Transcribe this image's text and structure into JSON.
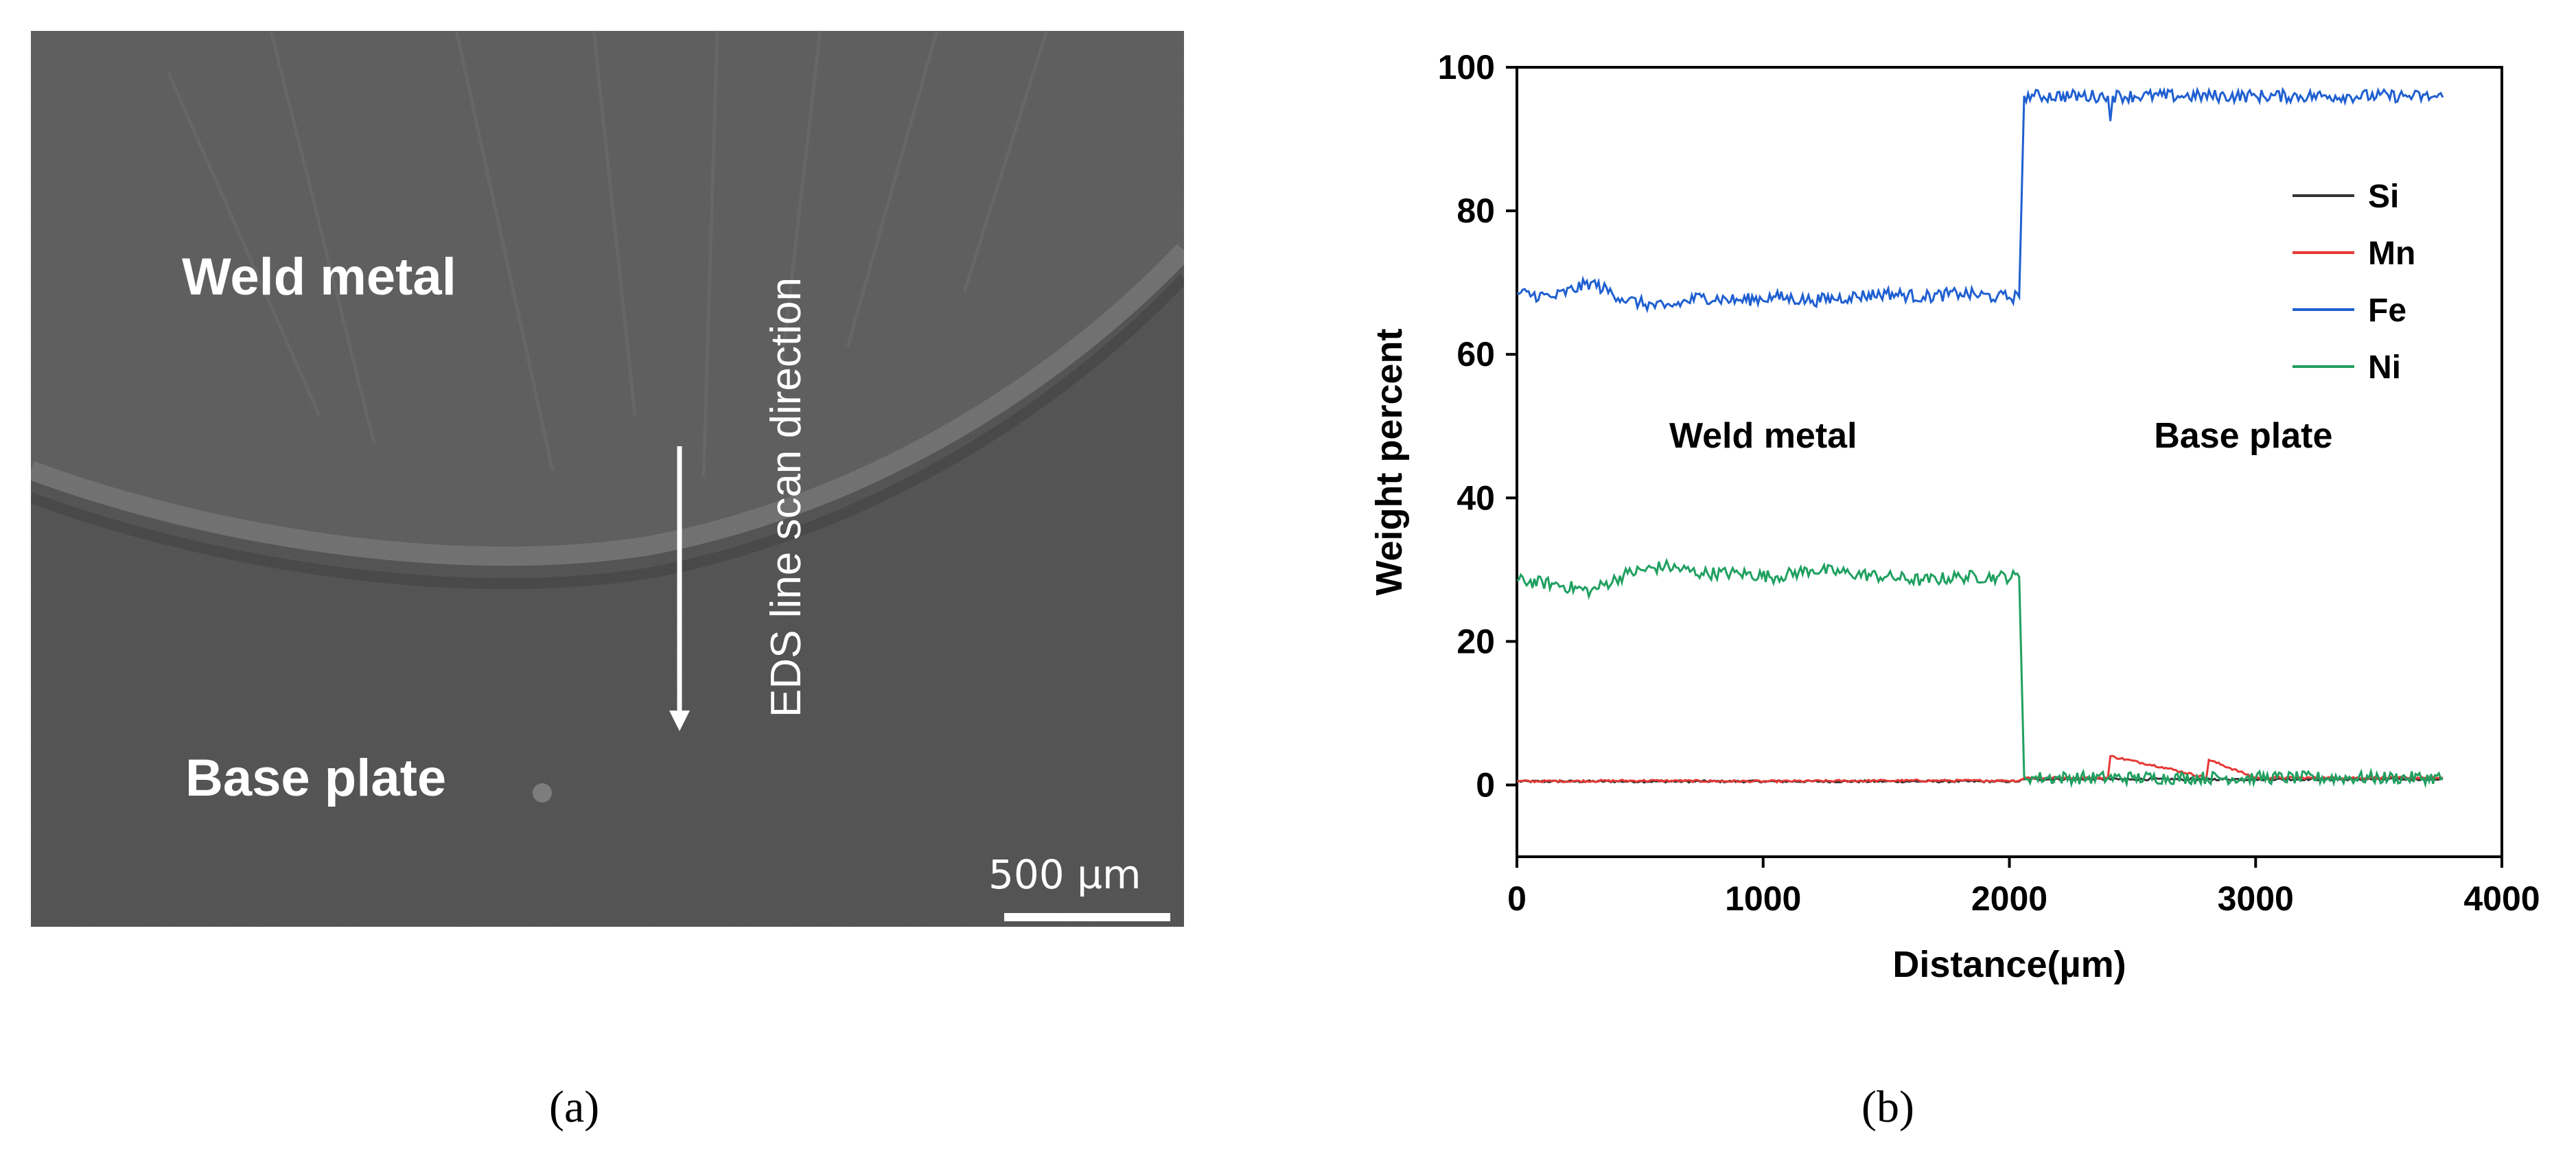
{
  "panel_a": {
    "caption": "(a)",
    "weld_label": "Weld metal",
    "base_label": "Base plate",
    "scan_label": "EDS line scan direction",
    "scalebar_label": "500 µm"
  },
  "panel_b": {
    "caption": "(b)"
  },
  "chart_data": {
    "type": "line",
    "xlabel": "Distance(µm)",
    "ylabel": "Weight percent",
    "xlim": [
      0,
      4000
    ],
    "ylim": [
      -10,
      100
    ],
    "xticks": [
      0,
      1000,
      2000,
      3000,
      4000
    ],
    "yticks": [
      0,
      20,
      40,
      60,
      80,
      100
    ],
    "legend_position": "right",
    "annotations": [
      {
        "text": "Weld metal",
        "x": 1000,
        "y": 47
      },
      {
        "text": "Base plate",
        "x": 2950,
        "y": 47
      }
    ],
    "series": [
      {
        "name": "Si",
        "color": "#333333",
        "x": [
          0,
          500,
          1000,
          1500,
          2040,
          2060,
          2500,
          3000,
          3500,
          3760
        ],
        "y": [
          0.5,
          0.5,
          0.5,
          0.5,
          0.5,
          0.8,
          0.8,
          0.8,
          0.8,
          0.8
        ]
      },
      {
        "name": "Mn",
        "color": "#e53935",
        "x": [
          0,
          500,
          1000,
          1500,
          2040,
          2060,
          2200,
          2400,
          2410,
          2620,
          2800,
          2810,
          3000,
          3500,
          3760
        ],
        "y": [
          0.5,
          0.6,
          0.5,
          0.6,
          0.6,
          1.0,
          1.0,
          1.0,
          4.0,
          2.5,
          1.0,
          3.5,
          1.0,
          1.0,
          1.0
        ]
      },
      {
        "name": "Fe",
        "color": "#1f5fd0",
        "x": [
          0,
          150,
          300,
          450,
          600,
          750,
          900,
          1050,
          1200,
          1350,
          1500,
          1650,
          1800,
          1950,
          2040,
          2060,
          2100,
          2400,
          2410,
          2420,
          2700,
          3000,
          3300,
          3600,
          3760
        ],
        "y": [
          68.5,
          68,
          70,
          67.5,
          66.5,
          68,
          67.5,
          68,
          67.5,
          68,
          68.5,
          68,
          68.5,
          68,
          68,
          96,
          96,
          96,
          92.5,
          96,
          96,
          96,
          96,
          96,
          95.8
        ]
      },
      {
        "name": "Ni",
        "color": "#20a060",
        "x": [
          0,
          150,
          300,
          450,
          600,
          750,
          900,
          1050,
          1200,
          1350,
          1500,
          1650,
          1800,
          1950,
          2040,
          2060,
          2100,
          2500,
          3000,
          3500,
          3760
        ],
        "y": [
          28.5,
          28,
          27,
          29.5,
          30.5,
          29.5,
          29.5,
          29,
          30,
          29.5,
          29,
          28.5,
          29,
          29,
          29,
          1.2,
          1.0,
          1.0,
          1.0,
          1.0,
          1.0
        ]
      }
    ]
  }
}
